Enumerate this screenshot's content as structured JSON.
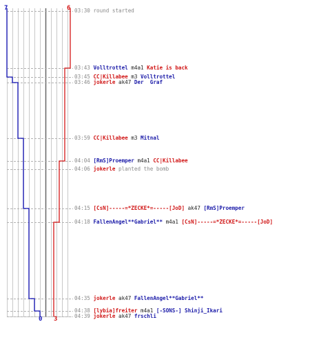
{
  "scoreboard": {
    "team_a_start": "7",
    "team_b_start": "6",
    "team_a_end": "0",
    "team_b_end": "3",
    "team_a_color": "#1515b8",
    "team_b_color": "#d41515"
  },
  "events": [
    {
      "time": "03:30",
      "parts": [
        {
          "text": "round started",
          "style": "g"
        }
      ]
    },
    {
      "time": "03:43",
      "parts": [
        {
          "text": "Volltrottel",
          "style": "b"
        },
        {
          "text": " m4a1 ",
          "style": "k"
        },
        {
          "text": "Katie is back",
          "style": "r"
        }
      ]
    },
    {
      "time": "03:45",
      "parts": [
        {
          "text": "CC|Killabee",
          "style": "r"
        },
        {
          "text": " m3 ",
          "style": "k"
        },
        {
          "text": "Volltrottel",
          "style": "b"
        }
      ]
    },
    {
      "time": "03:46",
      "parts": [
        {
          "text": "jokerle",
          "style": "r"
        },
        {
          "text": " ak47 ",
          "style": "k"
        },
        {
          "text": "Der  Graf",
          "style": "b"
        }
      ]
    },
    {
      "time": "03:59",
      "parts": [
        {
          "text": "CC|Killabee",
          "style": "r"
        },
        {
          "text": " m3 ",
          "style": "k"
        },
        {
          "text": "Mitnal",
          "style": "b"
        }
      ]
    },
    {
      "time": "04:04",
      "parts": [
        {
          "text": "[RmS]Proemper",
          "style": "b"
        },
        {
          "text": " m4a1 ",
          "style": "k"
        },
        {
          "text": "CC|Killabee",
          "style": "r"
        }
      ]
    },
    {
      "time": "04:06",
      "parts": [
        {
          "text": "jokerle",
          "style": "r"
        },
        {
          "text": " planted the bomb",
          "style": "g"
        }
      ]
    },
    {
      "time": "04:15",
      "parts": [
        {
          "text": "[CsN]-----=*ZECKE*=-----[JoD]",
          "style": "r"
        },
        {
          "text": " ak47 ",
          "style": "k"
        },
        {
          "text": "[RmS]Proemper",
          "style": "b"
        }
      ]
    },
    {
      "time": "04:18",
      "parts": [
        {
          "text": "FallenAngel**Gabriel**",
          "style": "b"
        },
        {
          "text": " m4a1 ",
          "style": "k"
        },
        {
          "text": "[CsN]-----=*ZECKE*=-----[JoD]",
          "style": "r"
        }
      ]
    },
    {
      "time": "04:35",
      "parts": [
        {
          "text": "jokerle",
          "style": "r"
        },
        {
          "text": " ak47 ",
          "style": "k"
        },
        {
          "text": "FallenAngel**Gabriel**",
          "style": "b"
        }
      ]
    },
    {
      "time": "04:38",
      "parts": [
        {
          "text": "[lybia]freiter",
          "style": "r"
        },
        {
          "text": " m4a1 ",
          "style": "k"
        },
        {
          "text": "[-SONS-] Shinji_Ikari",
          "style": "b"
        }
      ]
    },
    {
      "time": "04:39",
      "parts": [
        {
          "text": "jokerle",
          "style": "r"
        },
        {
          "text": " ak47 ",
          "style": "k"
        },
        {
          "text": "frschli",
          "style": "b"
        }
      ]
    }
  ]
}
